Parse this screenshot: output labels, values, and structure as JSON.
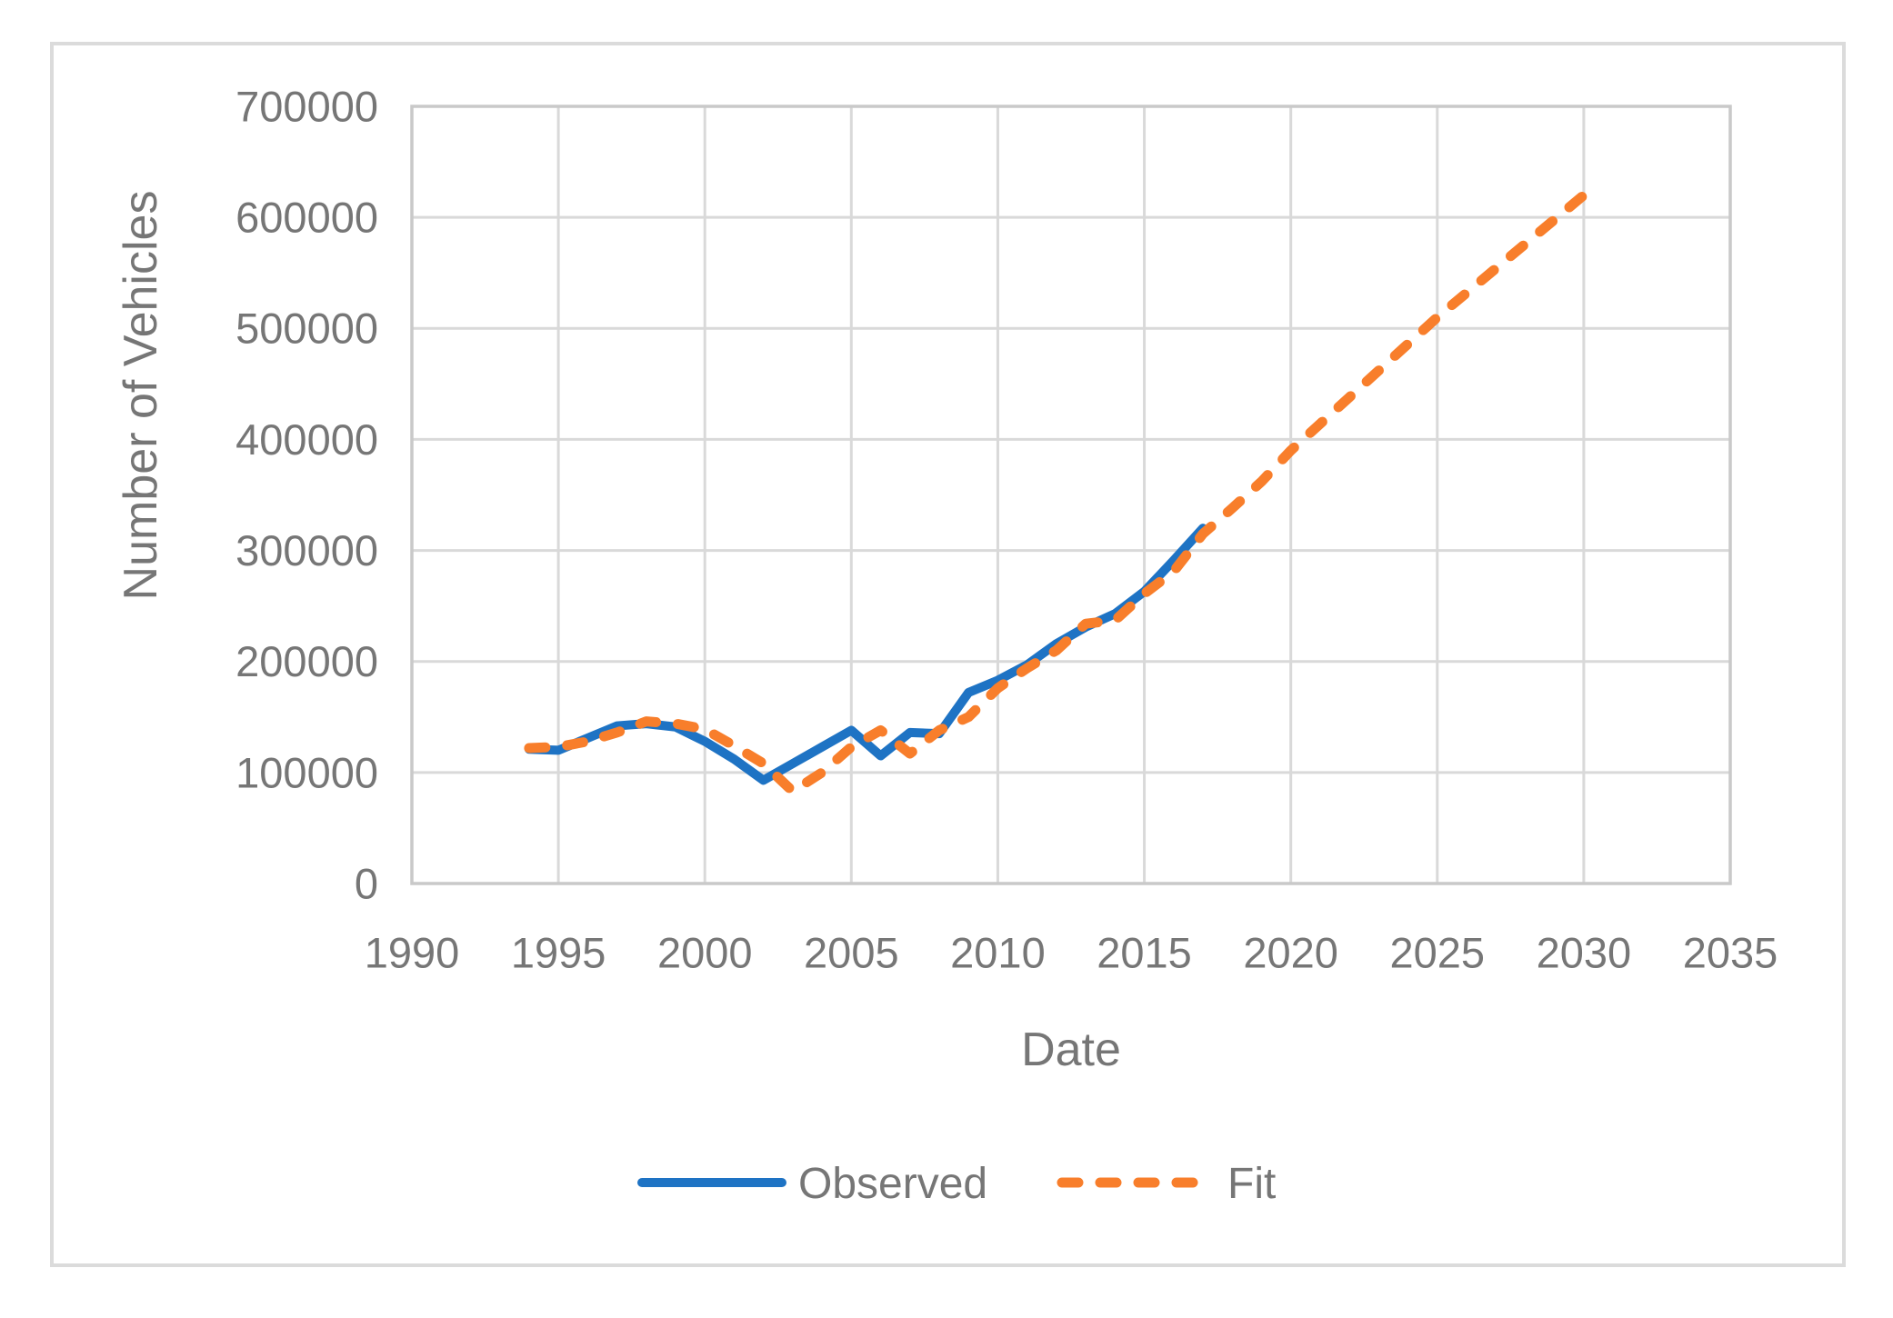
{
  "chart_data": {
    "type": "line",
    "title": "",
    "xlabel": "Date",
    "ylabel": "Number of Vehicles",
    "xlim": [
      1990,
      2035
    ],
    "ylim": [
      0,
      700000
    ],
    "x_ticks": [
      1990,
      1995,
      2000,
      2005,
      2010,
      2015,
      2020,
      2025,
      2030,
      2035
    ],
    "y_ticks": [
      0,
      100000,
      200000,
      300000,
      400000,
      500000,
      600000,
      700000
    ],
    "grid": true,
    "legend_position": "bottom-center",
    "series": [
      {
        "name": "Observed",
        "style": "solid",
        "x": [
          1994,
          1995,
          1996,
          1997,
          1998,
          1999,
          2000,
          2001,
          2002,
          2003,
          2004,
          2005,
          2006,
          2007,
          2008,
          2009,
          2010,
          2011,
          2012,
          2013,
          2014,
          2015,
          2016,
          2017
        ],
        "y": [
          121000,
          120000,
          131000,
          142000,
          144000,
          141000,
          128000,
          112000,
          93000,
          108000,
          123000,
          138000,
          115000,
          136000,
          135000,
          172000,
          183000,
          197000,
          216000,
          231000,
          243000,
          263000,
          291000,
          320000
        ]
      },
      {
        "name": "Fit",
        "style": "dashed",
        "x": [
          1994,
          1995,
          1996,
          1997,
          1998,
          1999,
          2000,
          2001,
          2002,
          2003,
          2004,
          2005,
          2006,
          2007,
          2008,
          2009,
          2010,
          2011,
          2012,
          2013,
          2014,
          2015,
          2016,
          2017,
          2018,
          2019,
          2020,
          2021,
          2022,
          2023,
          2024,
          2025,
          2026,
          2027,
          2028,
          2029,
          2030
        ],
        "y": [
          122000,
          123000,
          128000,
          136000,
          146000,
          144000,
          139000,
          124000,
          108000,
          83000,
          100000,
          123000,
          138000,
          117000,
          138000,
          150000,
          176000,
          194000,
          210000,
          234000,
          237000,
          261000,
          281000,
          315000,
          338000,
          362000,
          390000,
          414000,
          438000,
          462000,
          486000,
          510000,
          532000,
          554000,
          576000,
          598000,
          620000
        ]
      }
    ]
  },
  "colors": {
    "observed": "#1E73C4",
    "fit": "#F87E2B",
    "grid": "#D9D9D9",
    "plot_border": "#C9C9C9",
    "outer_border": "#DBDBDB",
    "text": "#767676",
    "background": "#FFFFFF"
  }
}
